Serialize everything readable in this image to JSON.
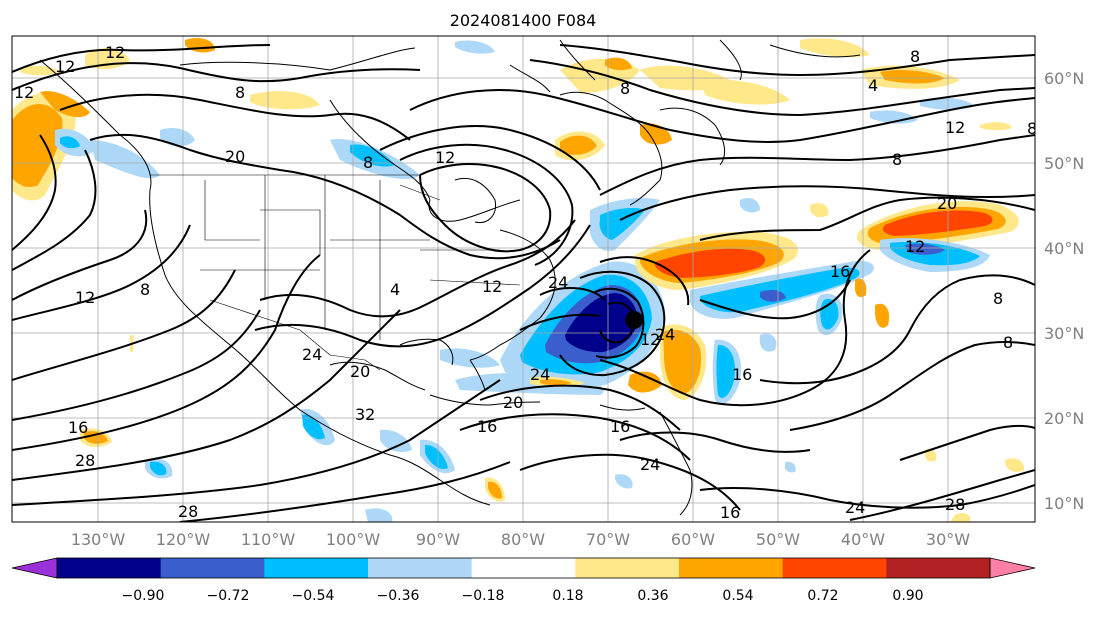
{
  "title": "2024081400 F084",
  "longitude_labels": [
    "130°W",
    "120°W",
    "110°W",
    "100°W",
    "90°W",
    "80°W",
    "70°W",
    "60°W",
    "50°W",
    "40°W",
    "30°W"
  ],
  "latitude_labels": [
    "60°N",
    "50°N",
    "40°N",
    "30°N",
    "20°N",
    "10°N"
  ],
  "colorbar": {
    "tick_labels": [
      "−0.90",
      "−0.72",
      "−0.54",
      "−0.36",
      "−0.18",
      "0.18",
      "0.36",
      "0.54",
      "0.72",
      "0.90"
    ],
    "colors": [
      "#9b30d9",
      "#00008b",
      "#3a5fcd",
      "#00bfff",
      "#add8f7",
      "#ffffff",
      "#ffe88a",
      "#ffa500",
      "#ff4500",
      "#b22222",
      "#ff7fa6"
    ]
  },
  "contour_labels": [
    "12",
    "12",
    "12",
    "8",
    "8",
    "20",
    "8",
    "12",
    "12",
    "8",
    "4",
    "8",
    "12",
    "20",
    "8",
    "12",
    "8",
    "16",
    "8",
    "8",
    "24",
    "24",
    "20",
    "28",
    "16",
    "28",
    "24",
    "20",
    "16",
    "24",
    "28",
    "16",
    "16",
    "16",
    "24",
    "12",
    "32",
    "4",
    "12",
    "24"
  ],
  "storm_marker": "tropical-cyclone-center"
}
